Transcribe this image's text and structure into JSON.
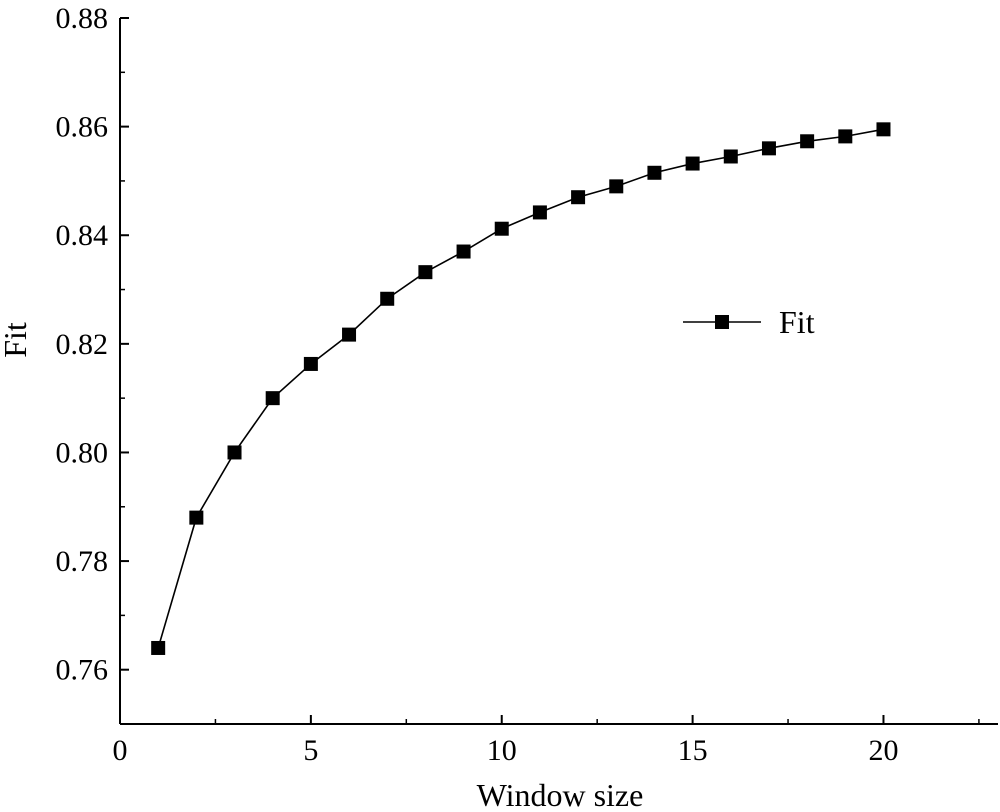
{
  "chart_data": {
    "type": "line",
    "xlabel": "Window size",
    "ylabel": "Fit",
    "xlim": [
      0,
      23
    ],
    "ylim": [
      0.75,
      0.88
    ],
    "xticks": [
      0,
      5,
      10,
      15,
      20
    ],
    "yticks": [
      0.76,
      0.78,
      0.8,
      0.82,
      0.84,
      0.86,
      0.88
    ],
    "xtick_labels": [
      "0",
      "5",
      "10",
      "15",
      "20"
    ],
    "ytick_labels": [
      "0.76",
      "0.78",
      "0.80",
      "0.82",
      "0.84",
      "0.86",
      "0.88"
    ],
    "grid": false,
    "legend_position": "center-right",
    "x": [
      1,
      2,
      3,
      4,
      5,
      6,
      7,
      8,
      9,
      10,
      11,
      12,
      13,
      14,
      15,
      16,
      17,
      18,
      19,
      20
    ],
    "series": [
      {
        "name": "Fit",
        "marker": "square",
        "color": "#000000",
        "values": [
          0.764,
          0.788,
          0.8,
          0.81,
          0.8163,
          0.8217,
          0.8283,
          0.8332,
          0.837,
          0.8412,
          0.8442,
          0.847,
          0.849,
          0.8515,
          0.8532,
          0.8545,
          0.856,
          0.8573,
          0.8582,
          0.8595
        ]
      }
    ]
  }
}
